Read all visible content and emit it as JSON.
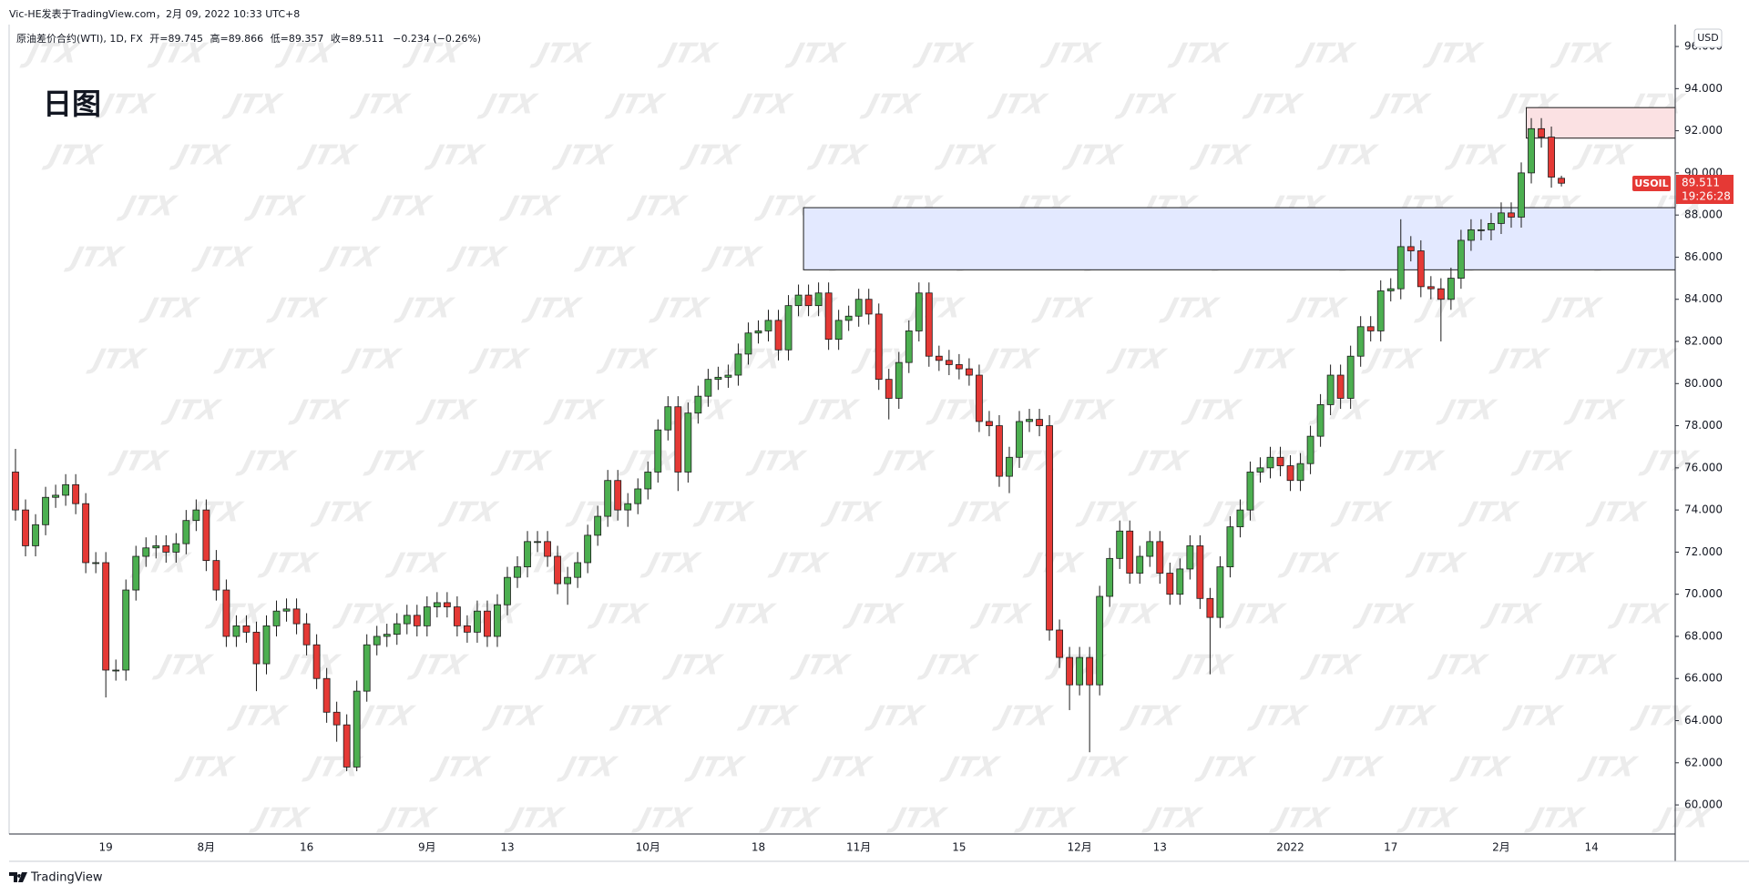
{
  "header": "Vic-HE发表于TradingView.com，2月 09, 2022 10:33 UTC+8",
  "footer": "TradingView",
  "chart_data": {
    "type": "candlestick",
    "title": "日图",
    "symbol": "原油差价合约(WTI), 1D, FX",
    "open_label": "开=",
    "high_label": "高=",
    "low_label": "低=",
    "close_label": "收=",
    "change": "−0.234 (−0.26%)",
    "currency": "USD",
    "symbol_tag": "USOIL",
    "countdown": "19:26:28",
    "watermark": "JTX",
    "up_color": "#4caf50",
    "down_color": "#e53935",
    "border_color": "#1b1b1b",
    "ylim": [
      58.62,
      97.04
    ],
    "yticks": [
      {
        "value": 60,
        "label": "60.000"
      },
      {
        "value": 62,
        "label": "62.000"
      },
      {
        "value": 64,
        "label": "64.000"
      },
      {
        "value": 66,
        "label": "66.000"
      },
      {
        "value": 68,
        "label": "68.000"
      },
      {
        "value": 70,
        "label": "70.000"
      },
      {
        "value": 72,
        "label": "72.000"
      },
      {
        "value": 74,
        "label": "74.000"
      },
      {
        "value": 76,
        "label": "76.000"
      },
      {
        "value": 78,
        "label": "78.000"
      },
      {
        "value": 80,
        "label": "80.000"
      },
      {
        "value": 82,
        "label": "82.000"
      },
      {
        "value": 84,
        "label": "84.000"
      },
      {
        "value": 86,
        "label": "86.000"
      },
      {
        "value": 88,
        "label": "88.000"
      },
      {
        "value": 90,
        "label": "90.000"
      },
      {
        "value": 92,
        "label": "92.000"
      },
      {
        "value": 94,
        "label": "94.000"
      },
      {
        "value": 96,
        "label": "96.000"
      }
    ],
    "categories": [
      null,
      null,
      null,
      null,
      null,
      null,
      null,
      null,
      null,
      "19",
      null,
      null,
      null,
      null,
      null,
      null,
      null,
      null,
      null,
      "8月",
      null,
      null,
      null,
      null,
      null,
      null,
      null,
      null,
      null,
      "16",
      null,
      null,
      null,
      null,
      null,
      null,
      null,
      null,
      null,
      null,
      null,
      "9月",
      null,
      null,
      null,
      null,
      null,
      null,
      null,
      "13",
      null,
      null,
      null,
      null,
      null,
      null,
      null,
      null,
      null,
      null,
      null,
      null,
      null,
      "10月",
      null,
      null,
      null,
      null,
      null,
      null,
      null,
      null,
      null,
      null,
      "18",
      null,
      null,
      null,
      null,
      null,
      null,
      null,
      null,
      null,
      "11月",
      null,
      null,
      null,
      null,
      null,
      null,
      null,
      null,
      null,
      "15",
      null,
      null,
      null,
      null,
      null,
      null,
      null,
      null,
      null,
      null,
      null,
      "12月",
      null,
      null,
      null,
      null,
      null,
      null,
      null,
      "13",
      null,
      null,
      null,
      null,
      null,
      null,
      null,
      null,
      null,
      null,
      null,
      null,
      "2022",
      null,
      null,
      null,
      null,
      null,
      null,
      null,
      null,
      null,
      "17",
      null,
      null,
      null,
      null,
      null,
      null,
      null,
      null,
      null,
      null,
      "2月",
      null,
      null,
      null,
      null,
      null,
      null,
      null,
      null,
      "14"
    ],
    "open": [
      75.8,
      74.0,
      72.3,
      73.3,
      74.6,
      74.7,
      75.2,
      74.3,
      71.5,
      71.5,
      66.4,
      66.4,
      70.2,
      71.8,
      72.2,
      72.3,
      72.0,
      72.4,
      73.5,
      74.0,
      71.6,
      70.2,
      68.0,
      68.5,
      68.2,
      66.7,
      68.5,
      69.2,
      69.3,
      68.6,
      67.6,
      66.0,
      64.4,
      63.8,
      61.8,
      65.4,
      67.6,
      68.0,
      68.1,
      68.6,
      69.0,
      68.5,
      69.4,
      69.6,
      69.4,
      68.5,
      68.2,
      69.2,
      68.0,
      69.5,
      70.8,
      71.3,
      72.5,
      72.5,
      71.8,
      70.5,
      70.8,
      71.5,
      72.8,
      73.7,
      75.4,
      74.0,
      74.3,
      75.0,
      75.8,
      77.8,
      78.9,
      75.8,
      78.6,
      79.4,
      80.2,
      80.3,
      80.4,
      81.4,
      82.4,
      82.5,
      83.0,
      81.6,
      83.7,
      84.2,
      83.7,
      84.3,
      82.1,
      83.0,
      83.2,
      84.0,
      83.3,
      80.2,
      79.3,
      81.0,
      82.5,
      84.3,
      81.3,
      81.1,
      80.9,
      80.7,
      80.4,
      78.2,
      78.0,
      75.6,
      76.5,
      78.2,
      78.3,
      78.0,
      68.3,
      67.0,
      65.7,
      67.0,
      65.7,
      69.9,
      71.7,
      73.0,
      71.0,
      71.8,
      72.5,
      71.0,
      70.0,
      71.2,
      72.3,
      69.8,
      68.9,
      71.3,
      73.2,
      74.0,
      75.8,
      76.0,
      76.5,
      76.1,
      75.4,
      76.2,
      77.5,
      79.0,
      80.4,
      79.3,
      81.3,
      82.7,
      82.5,
      84.4,
      84.5,
      86.5,
      86.3,
      84.6,
      84.5,
      84.0,
      85.0,
      86.8,
      87.3,
      87.3,
      87.6,
      88.1,
      87.9,
      90.0,
      92.1,
      91.7,
      89.745,
      null,
      null,
      null
    ],
    "high": [
      76.9,
      74.5,
      73.8,
      75.1,
      75.2,
      75.7,
      75.7,
      74.8,
      72.0,
      72.0,
      66.9,
      70.7,
      72.3,
      72.7,
      72.8,
      72.8,
      72.9,
      74.0,
      74.5,
      74.5,
      72.1,
      70.7,
      69.0,
      69.0,
      68.7,
      69.0,
      69.7,
      69.8,
      69.8,
      69.1,
      68.1,
      66.5,
      64.9,
      64.3,
      65.9,
      68.1,
      68.5,
      68.6,
      69.1,
      69.5,
      69.5,
      69.9,
      70.1,
      70.1,
      69.9,
      69.0,
      69.7,
      69.7,
      70.0,
      71.3,
      71.8,
      73.0,
      73.0,
      73.0,
      72.3,
      71.3,
      72.0,
      73.3,
      74.2,
      75.9,
      75.9,
      74.8,
      75.5,
      76.3,
      78.3,
      79.4,
      79.4,
      79.1,
      79.9,
      80.7,
      80.8,
      80.9,
      81.9,
      82.9,
      83.0,
      83.5,
      83.5,
      84.2,
      84.7,
      84.7,
      84.8,
      84.8,
      83.5,
      83.7,
      84.5,
      84.5,
      83.8,
      80.7,
      81.5,
      83.0,
      84.8,
      84.8,
      81.8,
      81.6,
      81.4,
      81.2,
      80.9,
      78.7,
      78.5,
      77.0,
      78.7,
      78.8,
      78.8,
      78.5,
      68.8,
      67.5,
      67.5,
      67.5,
      70.4,
      72.2,
      73.5,
      73.5,
      72.3,
      73.0,
      73.0,
      71.5,
      71.7,
      72.8,
      72.8,
      70.3,
      71.8,
      73.7,
      74.5,
      76.3,
      76.5,
      77.0,
      77.0,
      76.6,
      76.7,
      78.0,
      79.5,
      80.9,
      80.9,
      81.8,
      83.2,
      83.2,
      84.9,
      85.0,
      87.8,
      87.0,
      86.8,
      85.1,
      85.0,
      85.5,
      87.3,
      87.8,
      87.8,
      88.1,
      88.6,
      88.6,
      90.5,
      92.6,
      92.6,
      92.2,
      89.866,
      null,
      null,
      null
    ],
    "low": [
      73.5,
      71.8,
      71.8,
      72.8,
      74.1,
      74.2,
      73.8,
      71.0,
      71.0,
      65.1,
      65.9,
      65.9,
      69.7,
      71.3,
      71.7,
      71.5,
      71.5,
      71.9,
      73.0,
      71.1,
      69.7,
      67.5,
      67.5,
      67.7,
      65.4,
      66.2,
      68.0,
      68.7,
      68.1,
      67.1,
      65.5,
      63.9,
      63.0,
      61.6,
      61.6,
      64.9,
      67.1,
      67.5,
      67.6,
      68.1,
      68.0,
      68.0,
      68.9,
      68.9,
      68.0,
      67.7,
      67.7,
      67.5,
      67.5,
      69.0,
      70.3,
      70.8,
      72.0,
      71.3,
      70.0,
      69.5,
      70.3,
      71.0,
      72.3,
      73.2,
      73.5,
      73.2,
      73.8,
      74.5,
      75.3,
      77.3,
      74.9,
      75.3,
      78.1,
      78.9,
      79.7,
      79.8,
      79.9,
      80.9,
      81.9,
      82.0,
      81.1,
      81.1,
      83.2,
      83.2,
      83.2,
      81.6,
      81.6,
      82.5,
      82.7,
      82.8,
      79.7,
      78.3,
      78.8,
      80.5,
      82.0,
      80.8,
      80.6,
      80.4,
      80.2,
      79.9,
      77.7,
      77.5,
      75.1,
      74.8,
      76.0,
      77.7,
      77.5,
      67.8,
      66.5,
      64.5,
      65.2,
      62.5,
      65.2,
      69.4,
      71.2,
      70.5,
      70.5,
      71.3,
      70.5,
      69.5,
      69.5,
      70.7,
      69.3,
      66.2,
      68.4,
      70.8,
      72.7,
      73.5,
      75.3,
      75.5,
      75.6,
      74.9,
      74.9,
      75.7,
      77.0,
      78.5,
      78.8,
      78.8,
      80.8,
      82.0,
      82.0,
      83.9,
      84.0,
      85.8,
      84.1,
      84.0,
      82.0,
      83.5,
      84.5,
      86.3,
      86.8,
      86.8,
      87.1,
      87.4,
      87.4,
      89.5,
      91.2,
      89.3,
      89.357,
      null,
      null,
      null
    ],
    "close": [
      74.0,
      72.3,
      73.3,
      74.6,
      74.7,
      75.2,
      74.3,
      71.5,
      71.5,
      66.4,
      66.4,
      70.2,
      71.8,
      72.2,
      72.3,
      72.0,
      72.4,
      73.5,
      74.0,
      71.6,
      70.2,
      68.0,
      68.5,
      68.2,
      66.7,
      68.5,
      69.2,
      69.3,
      68.6,
      67.6,
      66.0,
      64.4,
      63.8,
      61.8,
      65.4,
      67.6,
      68.0,
      68.1,
      68.6,
      69.0,
      68.5,
      69.4,
      69.6,
      69.4,
      68.5,
      68.2,
      69.2,
      68.0,
      69.5,
      70.8,
      71.3,
      72.5,
      72.5,
      71.8,
      70.5,
      70.8,
      71.5,
      72.8,
      73.7,
      75.4,
      74.0,
      74.3,
      75.0,
      75.8,
      77.8,
      78.9,
      75.8,
      78.6,
      79.4,
      80.2,
      80.3,
      80.4,
      81.4,
      82.4,
      82.5,
      83.0,
      81.6,
      83.7,
      84.2,
      83.7,
      84.3,
      82.1,
      83.0,
      83.2,
      84.0,
      83.3,
      80.2,
      79.3,
      81.0,
      82.5,
      84.3,
      81.3,
      81.1,
      80.9,
      80.7,
      80.4,
      78.2,
      78.0,
      75.6,
      76.5,
      78.2,
      78.3,
      78.0,
      68.3,
      67.0,
      65.7,
      67.0,
      65.7,
      69.9,
      71.7,
      73.0,
      71.0,
      71.8,
      72.5,
      71.0,
      70.0,
      71.2,
      72.3,
      69.8,
      68.9,
      71.3,
      73.2,
      74.0,
      75.8,
      76.0,
      76.5,
      76.1,
      75.4,
      76.2,
      77.5,
      79.0,
      80.4,
      79.3,
      81.3,
      82.7,
      82.5,
      84.4,
      84.5,
      86.5,
      86.3,
      84.6,
      84.5,
      84.0,
      85.0,
      86.8,
      87.3,
      87.3,
      87.6,
      88.1,
      87.9,
      90.0,
      92.1,
      91.7,
      89.8,
      89.511,
      null,
      null,
      null
    ],
    "zones": [
      {
        "x": 79,
        "top": 88.35,
        "bottom": 85.4,
        "color": "#e3e9ff"
      },
      {
        "x": 151,
        "top": 93.1,
        "bottom": 91.65,
        "color": "#fbe1e3"
      }
    ]
  }
}
